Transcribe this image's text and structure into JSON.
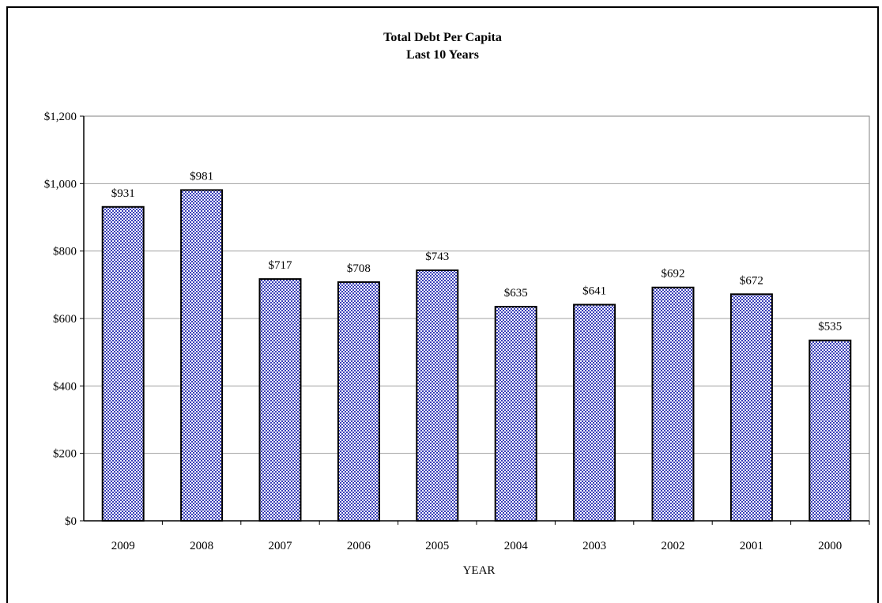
{
  "chart_data": {
    "type": "bar",
    "title": "Total Debt Per Capita",
    "subtitle": "Last 10 Years",
    "xlabel": "YEAR",
    "ylabel": "",
    "categories": [
      "2009",
      "2008",
      "2007",
      "2006",
      "2005",
      "2004",
      "2003",
      "2002",
      "2001",
      "2000"
    ],
    "values": [
      931,
      981,
      717,
      708,
      743,
      635,
      641,
      692,
      672,
      535
    ],
    "data_labels": [
      "$931",
      "$981",
      "$717",
      "$708",
      "$743",
      "$635",
      "$641",
      "$692",
      "$672",
      "$535"
    ],
    "ylim": [
      0,
      1200
    ],
    "yticks": [
      0,
      200,
      400,
      600,
      800,
      1000,
      1200
    ],
    "ytick_labels": [
      "$0",
      "$200",
      "$400",
      "$600",
      "$800",
      "$1,000",
      "$1,200"
    ],
    "grid": true,
    "legend": "none",
    "bar_fill": "#3a3fb8",
    "bar_pattern_light": "#ffffff",
    "grid_color": "#a0a0a0"
  }
}
